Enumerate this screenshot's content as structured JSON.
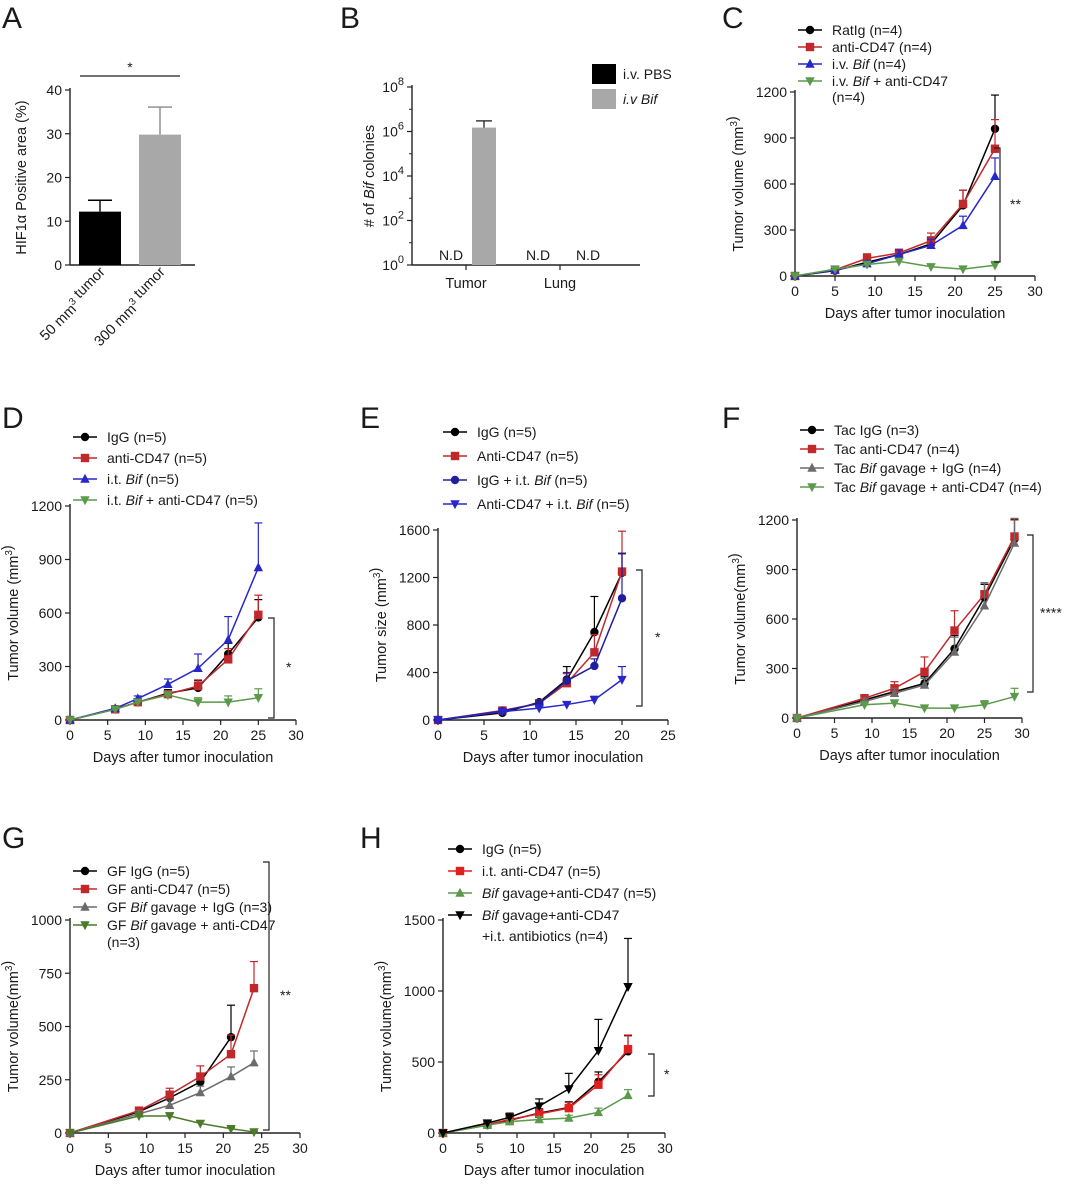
{
  "chart_data": [
    {
      "id": "A",
      "type": "bar",
      "panel_label": "A",
      "ylabel": "HIF1α Positive area (%)",
      "ylim": [
        0,
        40
      ],
      "yticks": [
        0,
        10,
        20,
        30,
        40
      ],
      "categories": [
        "50 mm³ tumor",
        "300 mm³ tumor"
      ],
      "values": [
        12.2,
        29.8
      ],
      "errors": [
        2.6,
        6.3
      ],
      "colors": [
        "#000000",
        "#a8a8a8"
      ],
      "significance": "*"
    },
    {
      "id": "B",
      "type": "bar",
      "panel_label": "B",
      "ylabel": "# of Bif colonies",
      "yscale": "log",
      "ylim": [
        1,
        100000000
      ],
      "ytick_labels": [
        {
          "base": "10",
          "exp": "8"
        },
        {
          "base": "10",
          "exp": "6"
        },
        {
          "base": "10",
          "exp": "4"
        },
        {
          "base": "10",
          "exp": "2"
        },
        {
          "base": "10",
          "exp": "0"
        }
      ],
      "categories": [
        "Tumor",
        "Lung"
      ],
      "series": [
        {
          "name": "i.v. PBS",
          "color": "#000000",
          "values": [
            null,
            null
          ]
        },
        {
          "name": "i.v Bif",
          "color": "#a8a8a8",
          "values": [
            1500000,
            null
          ]
        }
      ],
      "error_upper": 3000000,
      "annotations": [
        "N.D",
        "N.D",
        "N.D"
      ],
      "legend": [
        "i.v. PBS",
        "i.v Bif"
      ],
      "legend_position": "top-right"
    },
    {
      "id": "C",
      "type": "line",
      "panel_label": "C",
      "xlabel": "Days after tumor inoculation",
      "ylabel": "Tumor volume (mm3)",
      "xlim": [
        0,
        30
      ],
      "ylim": [
        0,
        1200
      ],
      "xticks": [
        0,
        5,
        10,
        15,
        20,
        25,
        30
      ],
      "yticks": [
        0,
        300,
        600,
        900,
        1200
      ],
      "significance": "**",
      "legend_position": "top",
      "series": [
        {
          "name": "RatIg (n=4)",
          "color": "#000000",
          "marker": "circle",
          "x": [
            0,
            5,
            9,
            13,
            17,
            21,
            25
          ],
          "y": [
            0,
            35,
            90,
            140,
            210,
            460,
            960
          ],
          "err": [
            0,
            8,
            20,
            25,
            45,
            100,
            220
          ]
        },
        {
          "name": "anti-CD47 (n=4)",
          "color": "#c0282b",
          "marker": "square",
          "x": [
            0,
            5,
            9,
            13,
            17,
            21,
            25
          ],
          "y": [
            0,
            40,
            115,
            150,
            230,
            470,
            830
          ],
          "err": [
            0,
            10,
            30,
            25,
            50,
            90,
            190
          ]
        },
        {
          "name": "i.v. Bif (n=4)",
          "color": "#2727c9",
          "marker": "triangle",
          "x": [
            0,
            5,
            9,
            13,
            17,
            21,
            25
          ],
          "y": [
            0,
            38,
            80,
            140,
            200,
            330,
            650
          ],
          "err": [
            0,
            10,
            20,
            30,
            40,
            60,
            120
          ]
        },
        {
          "name": "i.v. Bif + anti-CD47 (n=4)",
          "color": "#5a9a4a",
          "marker": "triangle-down",
          "x": [
            0,
            5,
            9,
            13,
            17,
            21,
            25
          ],
          "y": [
            0,
            45,
            75,
            95,
            60,
            45,
            70
          ],
          "err": [
            0,
            10,
            15,
            20,
            15,
            15,
            25
          ]
        }
      ]
    },
    {
      "id": "D",
      "type": "line",
      "panel_label": "D",
      "xlabel": "Days after tumor inoculation",
      "ylabel": "Tumor volume (mm3)",
      "xlim": [
        0,
        30
      ],
      "ylim": [
        0,
        1200
      ],
      "xticks": [
        0,
        5,
        10,
        15,
        20,
        25,
        30
      ],
      "yticks": [
        0,
        300,
        600,
        900,
        1200
      ],
      "significance": "*",
      "legend_position": "top",
      "series": [
        {
          "name": "IgG (n=5)",
          "color": "#000000",
          "marker": "circle",
          "x": [
            0,
            6,
            9,
            13,
            17,
            21,
            25
          ],
          "y": [
            0,
            62,
            100,
            150,
            180,
            370,
            575
          ],
          "err": [
            0,
            10,
            15,
            20,
            40,
            60,
            100
          ]
        },
        {
          "name": "anti-CD47 (n=5)",
          "color": "#c0282b",
          "marker": "square",
          "x": [
            0,
            6,
            9,
            13,
            17,
            21,
            25
          ],
          "y": [
            0,
            60,
            100,
            145,
            190,
            340,
            590
          ],
          "err": [
            0,
            10,
            15,
            20,
            35,
            60,
            110
          ]
        },
        {
          "name": "i.t. Bif (n=5)",
          "color": "#2727c9",
          "marker": "triangle",
          "x": [
            0,
            6,
            9,
            13,
            17,
            21,
            25
          ],
          "y": [
            0,
            65,
            120,
            200,
            290,
            450,
            855
          ],
          "err": [
            0,
            10,
            15,
            30,
            80,
            130,
            250
          ]
        },
        {
          "name": "i.t. Bif + anti-CD47 (n=5)",
          "color": "#5a9a4a",
          "marker": "triangle-down",
          "x": [
            0,
            6,
            9,
            13,
            17,
            21,
            25
          ],
          "y": [
            0,
            60,
            100,
            140,
            100,
            100,
            125
          ],
          "err": [
            0,
            10,
            15,
            20,
            25,
            35,
            50
          ]
        }
      ]
    },
    {
      "id": "E",
      "type": "line",
      "panel_label": "E",
      "xlabel": "Days after tumor inoculation",
      "ylabel": "Tumor size (mm3)",
      "xlim": [
        0,
        25
      ],
      "ylim": [
        0,
        1600
      ],
      "xticks": [
        0,
        5,
        10,
        15,
        20,
        25
      ],
      "yticks": [
        0,
        400,
        800,
        1200,
        1600
      ],
      "significance": "*",
      "legend_position": "top",
      "series": [
        {
          "name": "IgG (n=5)",
          "color": "#000000",
          "marker": "circle",
          "x": [
            0,
            7,
            11,
            14,
            17,
            20
          ],
          "y": [
            0,
            60,
            150,
            340,
            740,
            1240
          ],
          "err": [
            0,
            10,
            20,
            110,
            300,
            160
          ]
        },
        {
          "name": "Anti-CD47 (n=5)",
          "color": "#c0282b",
          "marker": "square",
          "x": [
            0,
            7,
            11,
            14,
            17,
            20
          ],
          "y": [
            0,
            80,
            140,
            310,
            570,
            1250
          ],
          "err": [
            0,
            15,
            25,
            80,
            150,
            340
          ]
        },
        {
          "name": "IgG + i.t. Bif (n=5)",
          "color": "#1f1f9e",
          "marker": "circle",
          "x": [
            0,
            7,
            11,
            14,
            17,
            20
          ],
          "y": [
            0,
            75,
            140,
            330,
            455,
            1025
          ],
          "err": [
            0,
            15,
            20,
            70,
            60,
            380
          ]
        },
        {
          "name": "Anti-CD47 + i.t. Bif (n=5)",
          "color": "#2727c9",
          "marker": "triangle-down",
          "x": [
            0,
            7,
            11,
            14,
            17,
            20
          ],
          "y": [
            0,
            70,
            100,
            130,
            170,
            340
          ],
          "err": [
            0,
            10,
            15,
            20,
            30,
            110
          ]
        }
      ]
    },
    {
      "id": "F",
      "type": "line",
      "panel_label": "F",
      "xlabel": "Days after tumor inoculation",
      "ylabel": "Tumor volume(mm3)",
      "xlim": [
        0,
        30
      ],
      "ylim": [
        0,
        1200
      ],
      "xticks": [
        0,
        5,
        10,
        15,
        20,
        25,
        30
      ],
      "yticks": [
        0,
        300,
        600,
        900,
        1200
      ],
      "significance": "****",
      "legend_position": "top",
      "series": [
        {
          "name": "Tac IgG (n=3)",
          "color": "#000000",
          "marker": "circle",
          "x": [
            0,
            9,
            13,
            17,
            21,
            25,
            29
          ],
          "y": [
            0,
            110,
            160,
            210,
            420,
            730,
            1085
          ],
          "err": [
            0,
            20,
            30,
            40,
            80,
            80,
            120
          ]
        },
        {
          "name": "Tac anti-CD47 (n=4)",
          "color": "#c0282b",
          "marker": "square",
          "x": [
            0,
            9,
            13,
            17,
            21,
            25,
            29
          ],
          "y": [
            0,
            120,
            180,
            280,
            530,
            750,
            1100
          ],
          "err": [
            0,
            20,
            40,
            90,
            120,
            70,
            100
          ]
        },
        {
          "name": "Tac Bif gavage + IgG (n=4)",
          "color": "#6b6b6b",
          "marker": "triangle",
          "x": [
            0,
            9,
            13,
            17,
            21,
            25,
            29
          ],
          "y": [
            0,
            100,
            150,
            200,
            400,
            680,
            1060
          ],
          "err": [
            0,
            20,
            30,
            40,
            90,
            140,
            150
          ]
        },
        {
          "name": "Tac Bif gavage + anti-CD47 (n=4)",
          "color": "#5a9a4a",
          "marker": "triangle-down",
          "x": [
            0,
            9,
            13,
            17,
            21,
            25,
            29
          ],
          "y": [
            0,
            80,
            90,
            60,
            60,
            80,
            130
          ],
          "err": [
            0,
            15,
            20,
            15,
            15,
            25,
            50
          ]
        }
      ]
    },
    {
      "id": "G",
      "type": "line",
      "panel_label": "G",
      "xlabel": "Days after tumor inoculation",
      "ylabel": "Tumor volume(mm3)",
      "xlim": [
        0,
        30
      ],
      "ylim": [
        0,
        1000
      ],
      "xticks": [
        0,
        5,
        10,
        15,
        20,
        25,
        30
      ],
      "yticks": [
        0,
        250,
        500,
        750,
        1000
      ],
      "significance": "**",
      "legend_position": "top",
      "series": [
        {
          "name": "GF IgG (n=5)",
          "color": "#000000",
          "marker": "circle",
          "x": [
            0,
            9,
            13,
            17,
            21
          ],
          "y": [
            0,
            100,
            165,
            240,
            450
          ],
          "err": [
            0,
            15,
            30,
            40,
            150
          ]
        },
        {
          "name": "GF anti-CD47 (n=5)",
          "color": "#c0282b",
          "marker": "square",
          "x": [
            0,
            9,
            13,
            17,
            21,
            24
          ],
          "y": [
            0,
            105,
            180,
            265,
            370,
            680
          ],
          "err": [
            0,
            15,
            30,
            50,
            90,
            125
          ]
        },
        {
          "name": "GF Bif gavage + IgG (n=3)",
          "color": "#6b6b6b",
          "marker": "triangle",
          "x": [
            0,
            9,
            13,
            17,
            21,
            24
          ],
          "y": [
            0,
            90,
            130,
            190,
            265,
            330
          ],
          "err": [
            0,
            15,
            25,
            30,
            45,
            55
          ]
        },
        {
          "name": "GF Bif gavage + anti-CD47 (n=3)",
          "color": "#4a7a2a",
          "marker": "triangle-down",
          "x": [
            0,
            9,
            13,
            17,
            21,
            24
          ],
          "y": [
            0,
            80,
            80,
            45,
            20,
            5
          ],
          "err": [
            0,
            10,
            15,
            10,
            5,
            3
          ]
        }
      ]
    },
    {
      "id": "H",
      "type": "line",
      "panel_label": "H",
      "xlabel": "Days after tumor inoculation",
      "ylabel": "Tumor volume(mm3)",
      "xlim": [
        0,
        30
      ],
      "ylim": [
        0,
        1500
      ],
      "xticks": [
        0,
        5,
        10,
        15,
        20,
        25,
        30
      ],
      "yticks": [
        0,
        500,
        1000,
        1500
      ],
      "significance": "*",
      "legend_position": "top",
      "series": [
        {
          "name": "IgG (n=5)",
          "color": "#000000",
          "marker": "circle",
          "x": [
            0,
            6,
            9,
            13,
            17,
            21,
            25
          ],
          "y": [
            0,
            55,
            90,
            140,
            180,
            360,
            575
          ],
          "err": [
            0,
            15,
            20,
            30,
            40,
            70,
            110
          ]
        },
        {
          "name": "i.t. anti-CD47 (n=5)",
          "color": "#e01f1f",
          "marker": "square",
          "x": [
            0,
            6,
            9,
            13,
            17,
            21,
            25
          ],
          "y": [
            0,
            60,
            95,
            135,
            175,
            340,
            590
          ],
          "err": [
            0,
            15,
            20,
            30,
            40,
            70,
            100
          ]
        },
        {
          "name": "Bif gavage+anti-CD47 (n=5)",
          "color": "#5a9a4a",
          "marker": "triangle",
          "x": [
            0,
            6,
            9,
            13,
            17,
            21,
            25
          ],
          "y": [
            0,
            55,
            80,
            95,
            105,
            145,
            265
          ],
          "err": [
            0,
            10,
            15,
            20,
            20,
            30,
            40
          ]
        },
        {
          "name": "Bif gavage+anti-CD47 +i.t. antibiotics (n=4)",
          "color": "#000000",
          "marker": "triangle-down",
          "x": [
            0,
            6,
            9,
            13,
            17,
            21,
            25
          ],
          "y": [
            0,
            70,
            110,
            190,
            310,
            580,
            1030
          ],
          "err": [
            0,
            20,
            30,
            50,
            110,
            220,
            340
          ]
        }
      ]
    }
  ]
}
